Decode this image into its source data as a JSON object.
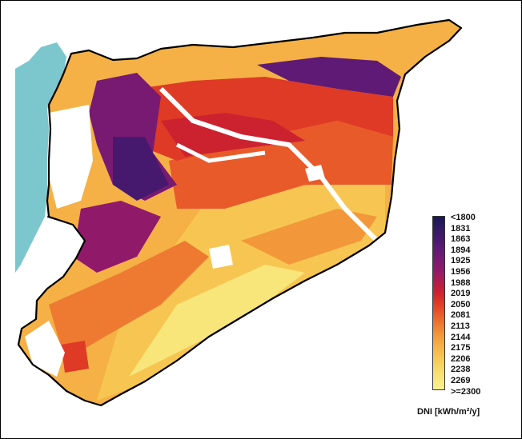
{
  "colors": {
    "sea": "#7cc7cd",
    "outline": "#000000",
    "background": "#ffffff"
  },
  "legend": {
    "unit": "DNI [kWh/m²/y]",
    "classes": [
      {
        "label": "<1800",
        "color": "#1a1854"
      },
      {
        "label": "1831",
        "color": "#2f1a63"
      },
      {
        "label": "1863",
        "color": "#47196e"
      },
      {
        "label": "1894",
        "color": "#5f1a75"
      },
      {
        "label": "1925",
        "color": "#781a72"
      },
      {
        "label": "1956",
        "color": "#91196a"
      },
      {
        "label": "1988",
        "color": "#b01d4d"
      },
      {
        "label": "2019",
        "color": "#cc2230"
      },
      {
        "label": "2050",
        "color": "#de3a26"
      },
      {
        "label": "2081",
        "color": "#e85a2a"
      },
      {
        "label": "2113",
        "color": "#ee7a31"
      },
      {
        "label": "2144",
        "color": "#f2983a"
      },
      {
        "label": "2175",
        "color": "#f5b146"
      },
      {
        "label": "2206",
        "color": "#f7c652"
      },
      {
        "label": "2238",
        "color": "#f8d865"
      },
      {
        "label": "2269",
        "color": "#f9e67b"
      },
      {
        "label": ">=2300",
        "color": "#f9f08f"
      }
    ]
  }
}
